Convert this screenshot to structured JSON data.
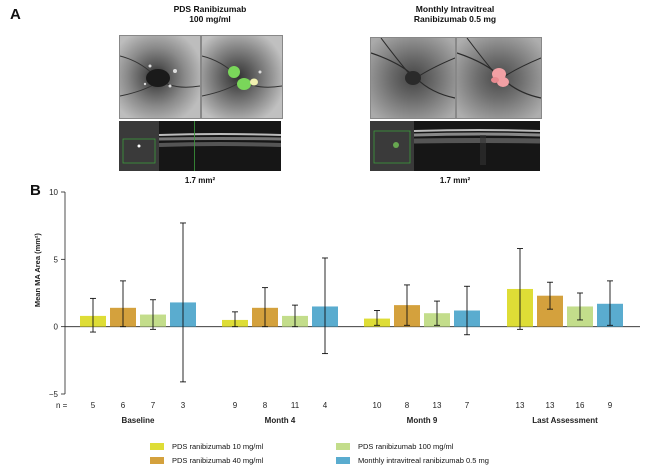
{
  "panelA": {
    "letter": "A",
    "groups": [
      {
        "title_line1": "PDS Ranibizumab",
        "title_line2": "100 mg/ml",
        "area": "1.7 mm²"
      },
      {
        "title_line1": "Monthly Intravitreal",
        "title_line2": "Ranibizumab 0.5 mg",
        "area": "1.7 mm²"
      }
    ]
  },
  "panelB": {
    "letter": "B"
  },
  "colors": {
    "pds10": "#dedd36",
    "pds40": "#d4a13d",
    "pds100": "#c3dd8b",
    "monthly": "#5aaccf"
  },
  "legend": [
    {
      "label": "PDS ranibizumab 10 mg/ml",
      "color": "#dedd36"
    },
    {
      "label": "PDS ranibizumab 40 mg/ml",
      "color": "#d4a13d"
    },
    {
      "label": "PDS ranibizumab 100 mg/ml",
      "color": "#c3dd8b"
    },
    {
      "label": "Monthly intravitreal ranibizumab 0.5 mg",
      "color": "#5aaccf"
    }
  ],
  "chart_data": {
    "type": "bar",
    "title": "",
    "ylabel": "Mean MA Area (mm²)",
    "xlabel": "",
    "ylim": [
      -5,
      10
    ],
    "yticks": [
      -5,
      0,
      5,
      10
    ],
    "ytick_labels": [
      "−5",
      "0",
      "5",
      "10"
    ],
    "n_prefix": "n =",
    "categories": [
      "Baseline",
      "Month 4",
      "Month 9",
      "Last Assessment"
    ],
    "series": [
      {
        "name": "PDS ranibizumab 10 mg/ml",
        "values": [
          0.8,
          0.5,
          0.6,
          2.8
        ],
        "err_low": [
          -0.4,
          0.0,
          0.1,
          -0.2
        ],
        "err_high": [
          2.1,
          1.1,
          1.2,
          5.8
        ],
        "n": [
          5,
          9,
          10,
          13
        ]
      },
      {
        "name": "PDS ranibizumab 40 mg/ml",
        "values": [
          1.4,
          1.4,
          1.6,
          2.3
        ],
        "err_low": [
          0.0,
          0.0,
          0.1,
          1.3
        ],
        "err_high": [
          3.4,
          2.9,
          3.1,
          3.3
        ],
        "n": [
          6,
          8,
          8,
          13
        ]
      },
      {
        "name": "PDS ranibizumab 100 mg/ml",
        "values": [
          0.9,
          0.8,
          1.0,
          1.5
        ],
        "err_low": [
          -0.2,
          0.0,
          0.1,
          0.5
        ],
        "err_high": [
          2.0,
          1.6,
          1.9,
          2.5
        ],
        "n": [
          7,
          11,
          13,
          16
        ]
      },
      {
        "name": "Monthly intravitreal ranibizumab 0.5 mg",
        "values": [
          1.8,
          1.5,
          1.2,
          1.7
        ],
        "err_low": [
          -4.1,
          -2.0,
          -0.6,
          0.1
        ],
        "err_high": [
          7.7,
          5.1,
          3.0,
          3.4
        ],
        "n": [
          3,
          4,
          7,
          9
        ]
      }
    ]
  }
}
